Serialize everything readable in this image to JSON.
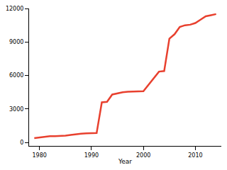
{
  "chart_data": {
    "type": "line",
    "x_label": "Year",
    "x": [
      1979,
      1980,
      1981,
      1982,
      1983,
      1984,
      1985,
      1986,
      1987,
      1988,
      1989,
      1990,
      1991,
      1992,
      1993,
      1994,
      1995,
      1996,
      1997,
      1998,
      1999,
      2000,
      2003,
      2004,
      2005,
      2006,
      2007,
      2008,
      2009,
      2010,
      2011,
      2012,
      2013,
      2014
    ],
    "values": [
      400,
      450,
      500,
      570,
      570,
      580,
      620,
      680,
      750,
      800,
      820,
      830,
      850,
      3600,
      3650,
      4300,
      4400,
      4500,
      4550,
      4570,
      4580,
      4600,
      6350,
      6400,
      9300,
      9700,
      10350,
      10500,
      10550,
      10700,
      11000,
      11300,
      11400,
      11500
    ],
    "color": "#e8402e",
    "xlim": [
      1978,
      2015
    ],
    "xticks": [
      1980,
      1990,
      2000,
      2010
    ],
    "ylim": [
      -300,
      12000
    ],
    "yticks": [
      0,
      3000,
      6000,
      9000,
      12000
    ],
    "grid": false
  }
}
